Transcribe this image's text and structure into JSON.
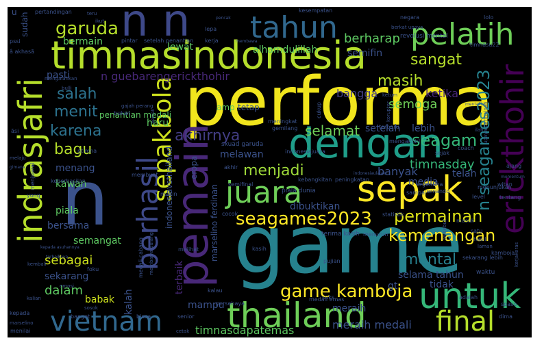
{
  "words": [
    {
      "text": "performa",
      "color": "#f1e51d"
    },
    {
      "text": "game",
      "color": "#26828e"
    },
    {
      "text": "timnasindonesia",
      "color": "#b5de2b"
    },
    {
      "text": "n n",
      "color": "#3e4989"
    },
    {
      "text": "n",
      "color": "#3b528b"
    },
    {
      "text": "pemain",
      "color": "#482878"
    },
    {
      "text": "dengan",
      "color": "#1f9e89"
    },
    {
      "text": "untuk",
      "color": "#35b779"
    },
    {
      "text": "thailand",
      "color": "#6ece58"
    },
    {
      "text": "sepak",
      "color": "#fde725"
    },
    {
      "text": "indrasjafri",
      "color": "#b5de2b"
    },
    {
      "text": "pelatih",
      "color": "#6ece58"
    },
    {
      "text": "tahun",
      "color": "#31688e"
    },
    {
      "text": "erickthohir",
      "color": "#440154"
    },
    {
      "text": "berhasil",
      "color": "#3e4989"
    },
    {
      "text": "sepakbola",
      "color": "#cde11d"
    },
    {
      "text": "juara",
      "color": "#6ece58"
    },
    {
      "text": "vietnam",
      "color": "#31688e"
    },
    {
      "text": "final",
      "color": "#b5de2b"
    },
    {
      "text": "game kamboja",
      "color": "#fde725"
    },
    {
      "text": "seagames2023",
      "color": "#fde725"
    },
    {
      "text": "n seagames2023",
      "color": "#26828e"
    },
    {
      "text": "permainan",
      "color": "#dde318"
    },
    {
      "text": "kemenangan",
      "color": "#fde725"
    },
    {
      "text": "garuda",
      "color": "#b5de2b"
    },
    {
      "text": "sangat",
      "color": "#b5de2b"
    },
    {
      "text": "menjadi",
      "color": "#9fda3a"
    },
    {
      "text": "seagam",
      "color": "#35b779"
    },
    {
      "text": "masih",
      "color": "#b5de2b"
    },
    {
      "text": "salah",
      "color": "#2c728e"
    },
    {
      "text": "menit",
      "color": "#2c728e"
    },
    {
      "text": "karena",
      "color": "#2c728e"
    },
    {
      "text": "bagu",
      "color": "#b5de2b"
    },
    {
      "text": "akhirnya",
      "color": "#433e85"
    },
    {
      "text": "selamat",
      "color": "#6ece58"
    },
    {
      "text": "mental",
      "color": "#27808e"
    },
    {
      "text": "timnasday",
      "color": "#35b779"
    },
    {
      "text": "n guebarengerickthohir",
      "color": "#482878"
    },
    {
      "text": "semoga",
      "color": "#6ece58"
    },
    {
      "text": "bangga",
      "color": "#433e85"
    },
    {
      "text": "ketika",
      "color": "#482878"
    },
    {
      "text": "berharap",
      "color": "#5ec962"
    },
    {
      "text": "semifin",
      "color": "#3b528b"
    },
    {
      "text": "lewat",
      "color": "#5ec962"
    },
    {
      "text": "bermain",
      "color": "#5ec962"
    },
    {
      "text": "alhamdulillah",
      "color": "#5ec962"
    },
    {
      "text": "menang",
      "color": "#3b528b"
    },
    {
      "text": "kawan",
      "color": "#5ec962"
    },
    {
      "text": "piala",
      "color": "#5ec962"
    },
    {
      "text": "bersama",
      "color": "#3b528b"
    },
    {
      "text": "sebagai",
      "color": "#cde11d"
    },
    {
      "text": "semangat",
      "color": "#5ec962"
    },
    {
      "text": "sekarang",
      "color": "#3b528b"
    },
    {
      "text": "dalam",
      "color": "#5ec962"
    },
    {
      "text": "babak",
      "color": "#cde11d"
    },
    {
      "text": "kalah",
      "color": "#3b528b"
    },
    {
      "text": "terbaik",
      "color": "#482878"
    },
    {
      "text": "timnasdapatemas",
      "color": "#5ec962"
    },
    {
      "text": "meraih medali",
      "color": "#3b528b"
    },
    {
      "text": "meraih",
      "color": "#3b528b"
    },
    {
      "text": "media",
      "color": "#3b528b"
    },
    {
      "text": "banyak",
      "color": "#3b528b"
    },
    {
      "text": "telah",
      "color": "#3b528b"
    },
    {
      "text": "lebih",
      "color": "#3b528b"
    },
    {
      "text": "setelah",
      "color": "#3b528b"
    },
    {
      "text": "selama tahun",
      "color": "#3b528b"
    },
    {
      "text": "tidak",
      "color": "#3b528b"
    },
    {
      "text": "gt",
      "color": "#3b528b"
    },
    {
      "text": "mampu",
      "color": "#3b528b"
    },
    {
      "text": "melawan",
      "color": "#3b528b"
    },
    {
      "text": "dibuktikan",
      "color": "#3b528b"
    },
    {
      "text": "eropa",
      "color": "#3b528b"
    },
    {
      "text": "marselino ferdinan",
      "color": "#3b528b"
    },
    {
      "text": "indonesiavsthailand",
      "color": "#3b528b"
    },
    {
      "text": "haru",
      "color": "#5ec962"
    },
    {
      "text": "penantian medali",
      "color": "#5ec962"
    },
    {
      "text": "amp",
      "color": "#5ec962"
    },
    {
      "text": "tetap",
      "color": "#3b528b"
    },
    {
      "text": "pasti",
      "color": "#3b528b"
    },
    {
      "text": "sudah",
      "color": "#3b528b"
    },
    {
      "text": "u",
      "color": "#3b528b"
    },
    {
      "text": "pertandingan",
      "color": "#3b528b"
    },
    {
      "text": "kesempatan",
      "color": "#3b528b"
    },
    {
      "text": "negara",
      "color": "#3b528b"
    },
    {
      "text": "lolo",
      "color": "#3b528b"
    },
    {
      "text": "revolusi mental",
      "color": "#3b528b"
    },
    {
      "text": "timnasu22",
      "color": "#3b528b"
    },
    {
      "text": "pintar",
      "color": "#3b528b"
    },
    {
      "text": "setelah penantian",
      "color": "#3b528b"
    },
    {
      "text": "kerja",
      "color": "#3b528b"
    },
    {
      "text": "lepa",
      "color": "#3b528b"
    },
    {
      "text": "pssi",
      "color": "#3b528b"
    },
    {
      "text": "mengalahkan",
      "color": "#3b528b"
    },
    {
      "text": "bukan",
      "color": "#3b528b"
    },
    {
      "text": "meningkat",
      "color": "#3b528b"
    },
    {
      "text": "gemilang",
      "color": "#3b528b"
    },
    {
      "text": "cukup",
      "color": "#3b528b"
    },
    {
      "text": "terbaru",
      "color": "#3b528b"
    },
    {
      "text": "mengakhiri",
      "color": "#3b528b"
    },
    {
      "text": "sejak",
      "color": "#3b528b"
    },
    {
      "text": "coach",
      "color": "#3b528b"
    },
    {
      "text": "skuad garuda",
      "color": "#3b528b"
    },
    {
      "text": "indonesiajuara",
      "color": "#3b528b"
    },
    {
      "text": "makin",
      "color": "#3b528b"
    },
    {
      "text": "membuat",
      "color": "#3b528b"
    },
    {
      "text": "keberhasilan",
      "color": "#3b528b"
    },
    {
      "text": "kebangkitan",
      "color": "#3b528b"
    },
    {
      "text": "peningkatan",
      "color": "#3b528b"
    },
    {
      "text": "argentina",
      "color": "#3b528b"
    },
    {
      "text": "ernando",
      "color": "#3b528b"
    },
    {
      "text": "sampai",
      "color": "#3b528b"
    },
    {
      "text": "piala dunia",
      "color": "#3b528b"
    },
    {
      "text": "terima kasih",
      "color": "#3b528b"
    },
    {
      "text": "cocok",
      "color": "#3b528b"
    },
    {
      "text": "menurun",
      "color": "#3b528b"
    },
    {
      "text": "statistik",
      "color": "#3b528b"
    },
    {
      "text": "semifinal",
      "color": "#3b528b"
    },
    {
      "text": "akhir",
      "color": "#3b528b"
    },
    {
      "text": "level",
      "color": "#3b528b"
    },
    {
      "text": "tentang",
      "color": "#3b528b"
    },
    {
      "text": "masuk",
      "color": "#3b528b"
    },
    {
      "text": "satu",
      "color": "#3b528b"
    },
    {
      "text": "hasil",
      "color": "#3b528b"
    },
    {
      "text": "kasih",
      "color": "#3b528b"
    },
    {
      "text": "pujian",
      "color": "#3b528b"
    },
    {
      "text": "melihat",
      "color": "#3b528b"
    },
    {
      "text": "medali cabang",
      "color": "#3b528b"
    },
    {
      "text": "membawa pulang",
      "color": "#3b528b"
    },
    {
      "text": "kalau",
      "color": "#3b528b"
    },
    {
      "text": "medali emas",
      "color": "#3b528b"
    },
    {
      "text": "persebaya",
      "color": "#3b528b"
    },
    {
      "text": "senior",
      "color": "#3b528b"
    },
    {
      "text": "biasa",
      "color": "#3b528b"
    },
    {
      "text": "banget",
      "color": "#3b528b"
    },
    {
      "text": "kepada",
      "color": "#3b528b"
    },
    {
      "text": "menilai",
      "color": "#3b528b"
    },
    {
      "text": "kalian",
      "color": "#3b528b"
    },
    {
      "text": "emosi",
      "color": "#3b528b"
    },
    {
      "text": "kembali",
      "color": "#3b528b"
    },
    {
      "text": "yong",
      "color": "#3b528b"
    },
    {
      "text": "gimana",
      "color": "#3b528b"
    },
    {
      "text": "melaju",
      "color": "#3b528b"
    },
    {
      "text": "ajang",
      "color": "#3b528b"
    },
    {
      "text": "momentum",
      "color": "#3b528b"
    },
    {
      "text": "witan",
      "color": "#3b528b"
    },
    {
      "text": "kamboja",
      "color": "#3b528b"
    },
    {
      "text": "waktu",
      "color": "#3b528b"
    },
    {
      "text": "dima",
      "color": "#3b528b"
    },
    {
      "text": "spaso",
      "color": "#3b528b"
    },
    {
      "text": "adalah",
      "color": "#3b528b"
    },
    {
      "text": "suks",
      "color": "#3b528b"
    },
    {
      "text": "sekarang lebih",
      "color": "#3b528b"
    },
    {
      "text": "foku",
      "color": "#3b528b"
    },
    {
      "text": "ntimna",
      "color": "#3b528b"
    },
    {
      "text": "upaya permainan",
      "color": "#3b528b"
    },
    {
      "text": "tersebut",
      "color": "#3b528b"
    },
    {
      "text": "menunjukan",
      "color": "#3b528b"
    },
    {
      "text": "kerjakeras",
      "color": "#3b528b"
    },
    {
      "text": "bulli",
      "color": "#3b528b"
    },
    {
      "text": "teru",
      "color": "#3b528b"
    },
    {
      "text": "ikut",
      "color": "#3b528b"
    },
    {
      "text": "â akhasã",
      "color": "#3b528b"
    },
    {
      "text": "berkat upaya",
      "color": "#3b528b"
    },
    {
      "text": "gajah perang",
      "color": "#3b528b"
    },
    {
      "text": "mentalita",
      "color": "#3b528b"
    },
    {
      "text": "ketum",
      "color": "#3b528b"
    },
    {
      "text": "koruptor",
      "color": "#3b528b"
    },
    {
      "text": "laman",
      "color": "#3b528b"
    },
    {
      "text": "ilah",
      "color": "#3b528b"
    },
    {
      "text": "sosok",
      "color": "#3b528b"
    },
    {
      "text": "cetak",
      "color": "#3b528b"
    },
    {
      "text": "marselino",
      "color": "#3b528b"
    },
    {
      "text": "pencak",
      "color": "#3b528b"
    },
    {
      "text": "membawa",
      "color": "#3b528b"
    },
    {
      "text": "pernah",
      "color": "#3b528b"
    },
    {
      "text": "kepada asuhannya",
      "color": "#3b528b"
    },
    {
      "text": "terbaiknya",
      "color": "#3b528b"
    },
    {
      "text": "menjuarai",
      "color": "#3b528b"
    },
    {
      "text": "ãsi",
      "color": "#3b528b"
    },
    {
      "text": "indonesiaulalaki",
      "color": "#3b528b"
    }
  ]
}
